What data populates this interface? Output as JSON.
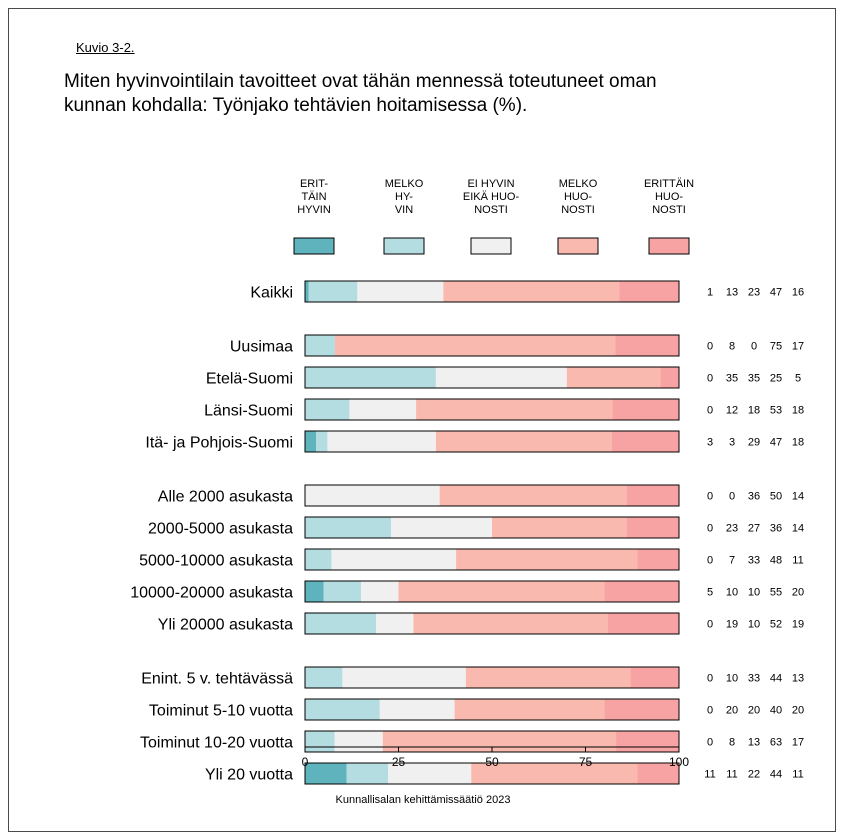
{
  "figure_label": "Kuvio 3-2.",
  "title_lines": [
    "Miten hyvinvointilain tavoitteet ovat tähän mennessä toteutuneet oman",
    "kunnan kohdalla: Työnjako tehtävien hoitamisessa (%)."
  ],
  "footer": "Kunnallisalan kehittämissäätiö 2023",
  "colors": {
    "erittain_hyvin": "#5fb3bd",
    "melko_hyvin": "#b3dde1",
    "ei_hyvin_eika_huonosti": "#f0f0f0",
    "melko_huonosti": "#f9b9ae",
    "erittain_huonosti": "#f8a3a3"
  },
  "chart_data": {
    "type": "bar",
    "orientation": "horizontal",
    "stacked": true,
    "xlim": [
      0,
      100
    ],
    "xticks": [
      0,
      25,
      50,
      75,
      100
    ],
    "legend_placement": "top",
    "series": [
      {
        "name": "ERIT-\nTÄIN\nHYVIN",
        "label_lines": [
          "ERIT-",
          "TÄIN",
          "HYVIN"
        ],
        "color": "#5fb3bd"
      },
      {
        "name": "MELKO\nHY-\nVIN",
        "label_lines": [
          "MELKO",
          "HY-",
          "VIN"
        ],
        "color": "#b3dde1"
      },
      {
        "name": "EI HYVIN\nEIKÄ HUO-\nNOSTI",
        "label_lines": [
          "EI HYVIN",
          "EIKÄ HUO-",
          "NOSTI"
        ],
        "color": "#f0f0f0"
      },
      {
        "name": "MELKO\nHUO-\nNOSTI",
        "label_lines": [
          "MELKO",
          "HUO-",
          "NOSTI"
        ],
        "color": "#f9b9ae"
      },
      {
        "name": "ERITTÄIN\nHUO-\nNOSTI",
        "label_lines": [
          "ERITTÄIN",
          "HUO-",
          "NOSTI"
        ],
        "color": "#f8a3a3"
      }
    ],
    "groups": [
      [
        {
          "label": "Kaikki",
          "values": [
            1,
            13,
            23,
            47,
            16
          ]
        }
      ],
      [
        {
          "label": "Uusimaa",
          "values": [
            0,
            8,
            0,
            75,
            17
          ]
        },
        {
          "label": "Etelä-Suomi",
          "values": [
            0,
            35,
            35,
            25,
            5
          ]
        },
        {
          "label": "Länsi-Suomi",
          "values": [
            0,
            12,
            18,
            53,
            18
          ]
        },
        {
          "label": "Itä- ja Pohjois-Suomi",
          "values": [
            3,
            3,
            29,
            47,
            18
          ]
        }
      ],
      [
        {
          "label": "Alle 2000 asukasta",
          "values": [
            0,
            0,
            36,
            50,
            14
          ]
        },
        {
          "label": "2000-5000 asukasta",
          "values": [
            0,
            23,
            27,
            36,
            14
          ]
        },
        {
          "label": "5000-10000 asukasta",
          "values": [
            0,
            7,
            33,
            48,
            11
          ]
        },
        {
          "label": "10000-20000 asukasta",
          "values": [
            5,
            10,
            10,
            55,
            20
          ]
        },
        {
          "label": "Yli 20000 asukasta",
          "values": [
            0,
            19,
            10,
            52,
            19
          ]
        }
      ],
      [
        {
          "label": "Enint. 5 v. tehtävässä",
          "values": [
            0,
            10,
            33,
            44,
            13
          ]
        },
        {
          "label": "Toiminut 5-10 vuotta",
          "values": [
            0,
            20,
            20,
            40,
            20
          ]
        },
        {
          "label": "Toiminut 10-20 vuotta",
          "values": [
            0,
            8,
            13,
            63,
            17
          ]
        },
        {
          "label": "Yli 20 vuotta",
          "values": [
            11,
            11,
            22,
            44,
            11
          ]
        }
      ]
    ]
  }
}
